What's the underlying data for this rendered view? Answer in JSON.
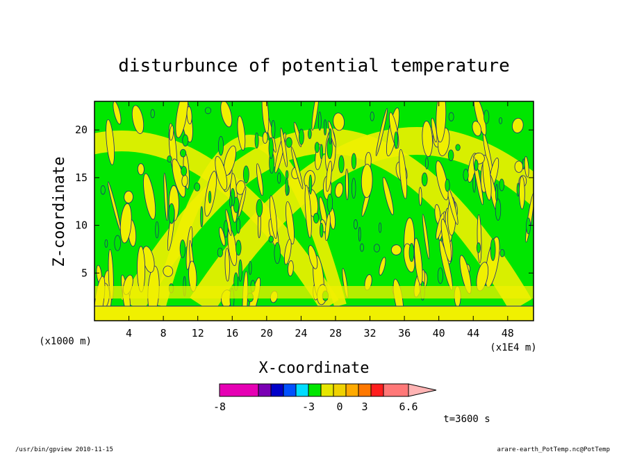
{
  "chart_data": {
    "type": "heatmap",
    "title": "disturbunce of potential temperature",
    "xlabel": "X-coordinate",
    "ylabel": "Z-coordinate",
    "x_unit_label": "(x1E4 m)",
    "y_unit_label": "(x1000 m)",
    "x_ticks": [
      4,
      8,
      12,
      16,
      20,
      24,
      28,
      32,
      36,
      40,
      44,
      48
    ],
    "y_ticks": [
      5,
      10,
      15,
      20
    ],
    "xlim": [
      0,
      51
    ],
    "ylim": [
      0,
      23
    ],
    "color_levels": [
      -8,
      -7,
      -6,
      -5,
      -4,
      -3,
      -2,
      -1,
      0,
      1,
      2,
      3,
      4,
      5,
      6.6
    ],
    "colorbar_labels": [
      "-8",
      "-3",
      "0",
      "3",
      "6.6"
    ],
    "colorbar_colors": [
      "#e600b4",
      "#e600b4",
      "#7a00b4",
      "#0000c8",
      "#0050ff",
      "#00dcff",
      "#00e600",
      "#e6e600",
      "#f0d200",
      "#ffaa00",
      "#ff7800",
      "#ff1e1e",
      "#ff7878",
      "#ffb4b4"
    ],
    "dominant_colors": {
      "negative_small": "#00e600",
      "positive_small": "#f0f000",
      "contour": "#1a237e"
    },
    "time_label": "t=3600 s"
  },
  "footer": {
    "left": "/usr/bin/gpview   2010-11-15",
    "right": "arare-earth_PotTemp.nc@PotTemp"
  }
}
